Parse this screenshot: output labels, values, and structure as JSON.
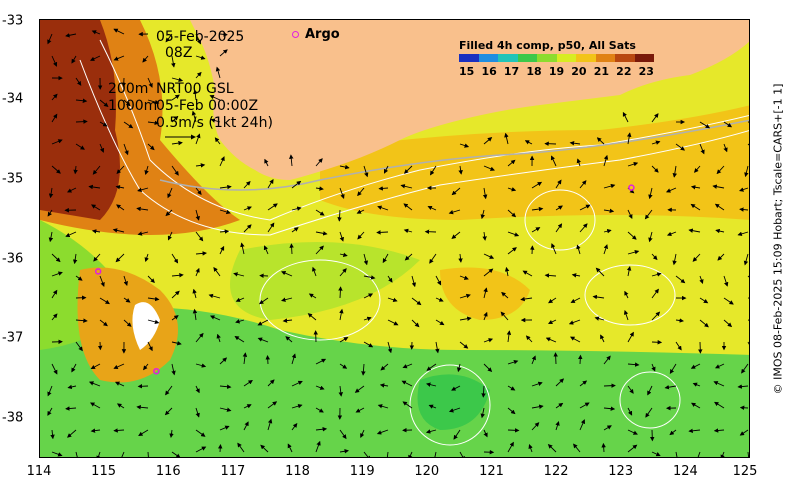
{
  "map": {
    "x_ticks": [
      "114",
      "115",
      "116",
      "117",
      "118",
      "119",
      "120",
      "121",
      "122",
      "123",
      "124",
      "125"
    ],
    "y_ticks": [
      "-33",
      "-34",
      "-35",
      "-36",
      "-37",
      "-38"
    ],
    "lon_range": [
      114,
      125
    ],
    "lat_range": [
      -33,
      -38.5
    ],
    "date_line": "05-Feb-2025",
    "time_line": "08Z",
    "contour_line1": "200m",
    "contour_line2": "1000m",
    "model_line1": "NRT00 GSL",
    "model_line2": "05-Feb 00:00Z",
    "scale_label": "0.5m/s (1kt 24h)",
    "argo_label": "Argo",
    "argo_floats": [
      {
        "lon": 114.9,
        "lat": -36.15
      },
      {
        "lon": 115.8,
        "lat": -37.4
      },
      {
        "lon": 123.15,
        "lat": -35.1
      }
    ],
    "land_color": "#f9c08c",
    "credit": "© IMOS 08-Feb-2025 15:09 Hobart; Tscale=CARS+[-1 1]"
  },
  "legend": {
    "title": "Filled 4h comp, p50, All Sats",
    "ticks": [
      "15",
      "16",
      "17",
      "18",
      "19",
      "20",
      "21",
      "22",
      "23"
    ],
    "colors": [
      "#1a30c0",
      "#1f8ee0",
      "#22c4b8",
      "#3cc84a",
      "#8cdc2e",
      "#d8ec22",
      "#f2c418",
      "#e08214",
      "#b84810",
      "#7a1a0a"
    ]
  }
}
